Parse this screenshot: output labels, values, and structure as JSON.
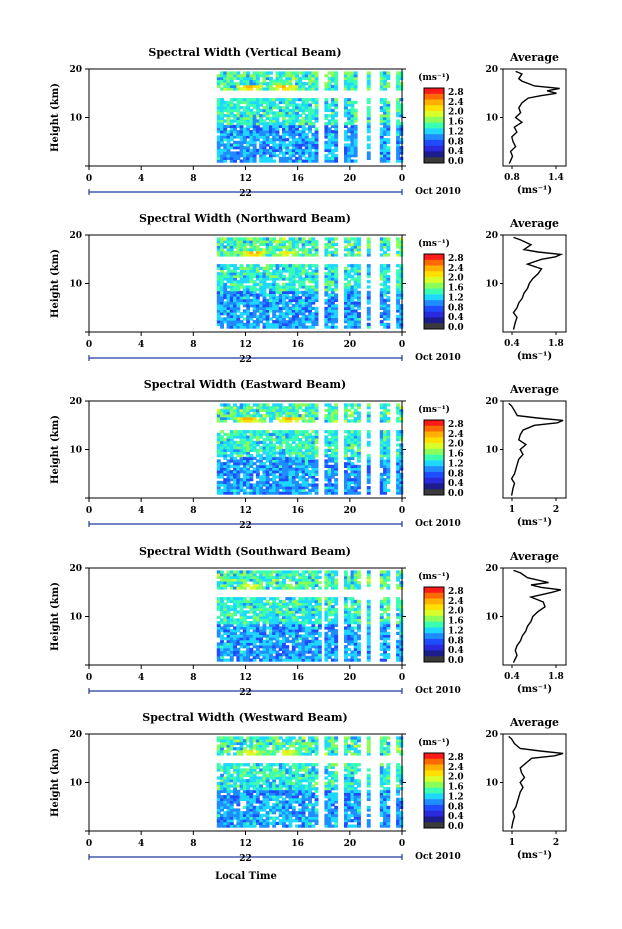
{
  "figure": {
    "bottom_xlabel": "Local Time"
  },
  "shared": {
    "height_ylabel": "Height (km)",
    "y_ticks": [
      "20",
      "10",
      "0"
    ],
    "x_ticks": [
      "0",
      "4",
      "8",
      "12",
      "16",
      "20",
      "0"
    ],
    "day_label": "22",
    "date_label": "Oct 2010",
    "unit_label": "(ms⁻¹)",
    "colorbar_ticks": [
      "2.8",
      "2.4",
      "2.0",
      "1.6",
      "1.2",
      "0.8",
      "0.4",
      "0.0"
    ],
    "colorbar_colors": [
      "#ff1a1a",
      "#ff6a00",
      "#ffb000",
      "#ffe000",
      "#d8ff2a",
      "#8aff5a",
      "#3affb0",
      "#1fd8ff",
      "#1f8cff",
      "#1f4cff",
      "#2a2adc",
      "#1c1c8c",
      "#3a3a3a"
    ],
    "avg_title": "Average",
    "avg_xlabel": "(ms⁻¹)"
  },
  "chart_data": [
    {
      "type": "heatmap",
      "title": "Spectral Width (Vertical Beam)",
      "xlim": [
        0,
        24
      ],
      "ylim": [
        0,
        20
      ],
      "data_start_hour": 9.8,
      "gaps_hours": [
        [
          17.6,
          18.0
        ],
        [
          19.1,
          19.5
        ],
        [
          20.7,
          21.1
        ],
        [
          21.6,
          22.1
        ],
        [
          23.2,
          23.4
        ]
      ],
      "high_layer": {
        "height_km": 16,
        "peaks": [
          {
            "hour": 12.2,
            "value": 2.8
          },
          {
            "hour": 14.9,
            "value": 2.8
          }
        ]
      },
      "average_profile": {
        "xticks": [
          "0.8",
          "1.4"
        ],
        "xlim": [
          0.6,
          1.6
        ],
        "height": [
          0.5,
          2,
          3,
          4,
          5,
          6,
          7,
          8,
          9,
          10,
          11,
          12,
          13,
          14,
          14.5,
          15,
          15.5,
          16,
          16.5,
          17,
          17.5,
          18,
          19,
          19.5
        ],
        "value": [
          0.7,
          0.75,
          0.72,
          0.8,
          0.76,
          0.74,
          0.82,
          0.78,
          0.9,
          0.8,
          0.88,
          0.85,
          0.9,
          1.0,
          1.2,
          1.45,
          1.3,
          1.5,
          1.1,
          1.0,
          0.9,
          0.85,
          0.9,
          0.8
        ]
      }
    },
    {
      "type": "heatmap",
      "title": "Spectral Width (Northward Beam)",
      "xlim": [
        0,
        24
      ],
      "ylim": [
        0,
        20
      ],
      "data_start_hour": 9.8,
      "gaps_hours": [
        [
          17.7,
          18.0
        ],
        [
          19.2,
          19.5
        ],
        [
          20.8,
          21.2
        ],
        [
          21.7,
          22.2
        ],
        [
          23.2,
          23.4
        ]
      ],
      "high_layer": {
        "height_km": 16,
        "peaks": [
          {
            "hour": 12.5,
            "value": 2.8
          },
          {
            "hour": 15.0,
            "value": 2.4
          }
        ]
      },
      "average_profile": {
        "xticks": [
          "0.4",
          "1.8"
        ],
        "xlim": [
          0.2,
          2.0
        ],
        "height": [
          0.5,
          2,
          3,
          4,
          5,
          6,
          7,
          8,
          9,
          10,
          11,
          12,
          13,
          14,
          15,
          15.5,
          16,
          16.5,
          17,
          18,
          19,
          19.5
        ],
        "value": [
          0.5,
          0.55,
          0.6,
          0.5,
          0.6,
          0.65,
          0.75,
          0.8,
          0.9,
          0.95,
          1.05,
          1.2,
          1.3,
          0.9,
          1.3,
          1.7,
          1.85,
          1.2,
          0.8,
          1.0,
          0.7,
          0.5
        ]
      }
    },
    {
      "type": "heatmap",
      "title": "Spectral Width (Eastward Beam)",
      "xlim": [
        0,
        24
      ],
      "ylim": [
        0,
        20
      ],
      "data_start_hour": 9.8,
      "gaps_hours": [
        [
          17.7,
          18.0
        ],
        [
          19.2,
          19.5
        ],
        [
          20.8,
          21.2
        ],
        [
          21.7,
          22.2
        ],
        [
          23.2,
          23.4
        ]
      ],
      "high_layer": {
        "height_km": 16,
        "peaks": [
          {
            "hour": 12.1,
            "value": 2.8
          },
          {
            "hour": 15.2,
            "value": 2.8
          }
        ]
      },
      "average_profile": {
        "xticks": [
          "1",
          "2"
        ],
        "xlim": [
          0.4,
          2.6
        ],
        "height": [
          0.5,
          2,
          3,
          4,
          5,
          6,
          7,
          8,
          9,
          10,
          11,
          12,
          13,
          14,
          15,
          15.5,
          16,
          16.5,
          17,
          18,
          19,
          19.5
        ],
        "value": [
          0.7,
          0.75,
          0.8,
          0.7,
          0.8,
          0.85,
          0.9,
          0.95,
          1.1,
          1.0,
          1.2,
          0.95,
          1.0,
          1.1,
          1.5,
          2.3,
          2.5,
          1.6,
          0.9,
          0.8,
          0.7,
          0.6
        ]
      }
    },
    {
      "type": "heatmap",
      "title": "Spectral Width (Southward Beam)",
      "xlim": [
        0,
        24
      ],
      "ylim": [
        0,
        20
      ],
      "data_start_hour": 9.8,
      "gaps_hours": [
        [
          17.8,
          18.0
        ],
        [
          19.2,
          19.5
        ],
        [
          20.8,
          21.3
        ],
        [
          21.7,
          22.2
        ],
        [
          23.2,
          23.4
        ]
      ],
      "high_layer": {
        "height_km": 16,
        "peaks": [
          {
            "hour": 12.3,
            "value": 2.4
          },
          {
            "hour": 15.4,
            "value": 2.0
          }
        ]
      },
      "average_profile": {
        "xticks": [
          "0.4",
          "1.8"
        ],
        "xlim": [
          0.2,
          2.0
        ],
        "height": [
          0.5,
          2,
          3,
          4,
          5,
          6,
          7,
          8,
          9,
          10,
          11,
          12,
          13,
          14,
          15,
          15.5,
          16,
          16.5,
          17,
          18,
          19,
          19.5
        ],
        "value": [
          0.5,
          0.6,
          0.55,
          0.6,
          0.7,
          0.75,
          0.85,
          0.9,
          1.0,
          1.05,
          1.2,
          1.4,
          1.35,
          1.0,
          1.6,
          1.85,
          1.3,
          1.0,
          1.5,
          0.9,
          0.7,
          0.5
        ]
      }
    },
    {
      "type": "heatmap",
      "title": "Spectral Width (Westward Beam)",
      "xlim": [
        0,
        24
      ],
      "ylim": [
        0,
        20
      ],
      "data_start_hour": 9.8,
      "gaps_hours": [
        [
          17.7,
          18.0
        ],
        [
          19.2,
          19.5
        ],
        [
          20.8,
          21.2
        ],
        [
          21.7,
          22.2
        ],
        [
          23.2,
          23.4
        ]
      ],
      "high_layer": {
        "height_km": 16,
        "peaks": [
          {
            "hour": 12.4,
            "value": 2.4
          },
          {
            "hour": 15.1,
            "value": 2.4
          }
        ]
      },
      "average_profile": {
        "xticks": [
          "1",
          "2"
        ],
        "xlim": [
          0.4,
          2.6
        ],
        "height": [
          0.5,
          2,
          3,
          4,
          5,
          6,
          7,
          8,
          9,
          10,
          11,
          12,
          13,
          14,
          15,
          15.5,
          16,
          16.5,
          17,
          18,
          19,
          19.5
        ],
        "value": [
          0.7,
          0.75,
          0.8,
          0.75,
          0.85,
          0.9,
          0.95,
          1.0,
          1.1,
          1.0,
          1.15,
          1.05,
          1.0,
          1.2,
          1.4,
          2.2,
          2.5,
          1.7,
          1.0,
          0.8,
          0.7,
          0.6
        ]
      }
    }
  ]
}
